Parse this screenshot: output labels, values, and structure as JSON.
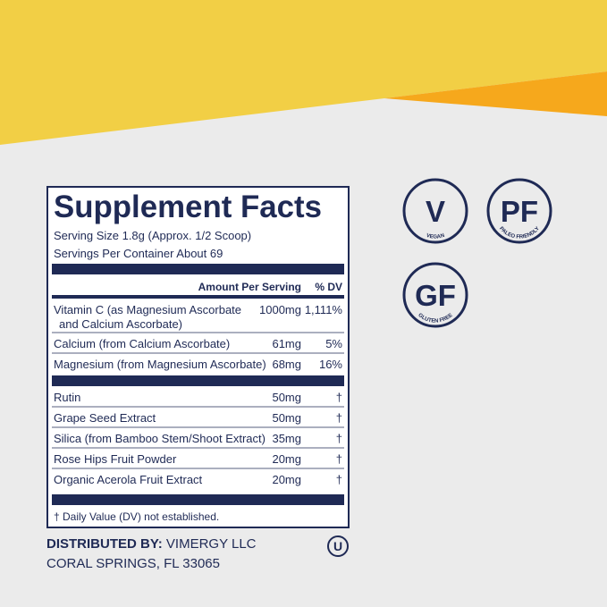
{
  "panel": {
    "title": "Supplement Facts",
    "serving_size": "Serving Size 1.8g (Approx. 1/2 Scoop)",
    "servings_per_container": "Servings Per Container About 69",
    "header": {
      "amount": "Amount Per Serving",
      "dv": "% DV"
    },
    "groups": [
      [
        {
          "name_lines": [
            "Vitamin C (as Magnesium Ascorbate",
            "and Calcium Ascorbate)"
          ],
          "amount": "1000mg",
          "dv": "1,111%"
        },
        {
          "name_lines": [
            "Calcium (from Calcium Ascorbate)"
          ],
          "amount": "61mg",
          "dv": "5%"
        },
        {
          "name_lines": [
            "Magnesium (from Magnesium Ascorbate)"
          ],
          "amount": "68mg",
          "dv": "16%"
        }
      ],
      [
        {
          "name_lines": [
            "Rutin"
          ],
          "amount": "50mg",
          "dv": "†"
        },
        {
          "name_lines": [
            "Grape Seed Extract"
          ],
          "amount": "50mg",
          "dv": "†"
        },
        {
          "name_lines": [
            "Silica (from Bamboo Stem/Shoot Extract)"
          ],
          "amount": "35mg",
          "dv": "†"
        },
        {
          "name_lines": [
            "Rose Hips Fruit Powder"
          ],
          "amount": "20mg",
          "dv": "†"
        },
        {
          "name_lines": [
            "Organic Acerola Fruit Extract"
          ],
          "amount": "20mg",
          "dv": "†"
        }
      ]
    ],
    "footnote": "† Daily Value (DV) not established."
  },
  "distributor": {
    "label": "DISTRIBUTED BY:",
    "name": "VIMERGY LLC",
    "address": "CORAL SPRINGS, FL 33065",
    "symbol": "U"
  },
  "badges": [
    {
      "mark": "V",
      "text": "VEGAN"
    },
    {
      "mark": "PF",
      "text": "PALEO FRIENDLY"
    },
    {
      "mark": "GF",
      "text": "GLUTEN FREE"
    }
  ]
}
